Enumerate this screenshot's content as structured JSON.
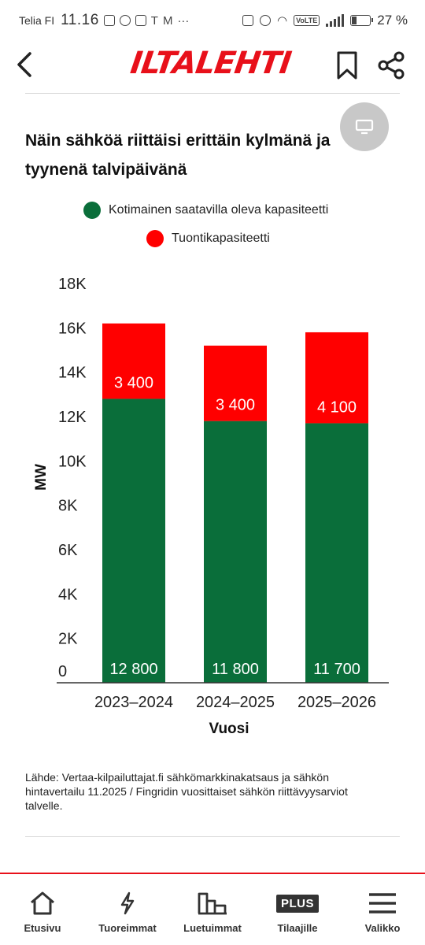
{
  "status_bar": {
    "carrier": "Telia FI",
    "time": "11.16",
    "volte": "VoLTE",
    "battery": "27 %"
  },
  "header": {
    "logo": "ILTALEHTI",
    "icons": [
      "back-arrow-icon",
      "bookmark-icon",
      "share-icon"
    ]
  },
  "article": {
    "title": "Näin sähköä riittäisi erittäin kylmänä ja tyynenä talvipäivänä",
    "source": "Lähde: Vertaa-kilpailuttajat.fi sähkömarkkinakatsaus ja sähkön hintavertailu 11.2025 / Fingridin vuosittaiset sähkön riittävyysarviot talvelle."
  },
  "chart_data": {
    "type": "bar",
    "stacked": true,
    "categories": [
      "2023–2024",
      "2024–2025",
      "2025–2026"
    ],
    "series": [
      {
        "name": "Kotimainen saatavilla oleva kapasiteetti",
        "color": "#0a6e3a",
        "values": [
          12800,
          11800,
          11700
        ],
        "labels": [
          "12 800",
          "11 800",
          "11 700"
        ]
      },
      {
        "name": "Tuontikapasiteetti",
        "color": "#ff0000",
        "values": [
          3400,
          3400,
          4100
        ],
        "labels": [
          "3 400",
          "3 400",
          "4 100"
        ]
      }
    ],
    "xlabel": "Vuosi",
    "ylabel": "MW",
    "ylim": [
      0,
      18000
    ],
    "yticks": [
      0,
      2000,
      4000,
      6000,
      8000,
      10000,
      12000,
      14000,
      16000,
      18000
    ],
    "ytick_labels": [
      "0",
      "2K",
      "4K",
      "6K",
      "8K",
      "10K",
      "12K",
      "14K",
      "16K",
      "18K"
    ],
    "legend_position": "top",
    "grid": false
  },
  "bottom_nav": [
    {
      "id": "etusivu",
      "label": "Etusivu",
      "icon": "home-icon"
    },
    {
      "id": "tuoreimmat",
      "label": "Tuoreimmat",
      "icon": "lightning-icon"
    },
    {
      "id": "luetuimmat",
      "label": "Luetuimmat",
      "icon": "bar-chart-icon"
    },
    {
      "id": "tilaajille",
      "label": "Tilaajille",
      "icon": "plus-badge-icon",
      "badge": "PLUS"
    },
    {
      "id": "valikko",
      "label": "Valikko",
      "icon": "menu-icon"
    }
  ]
}
